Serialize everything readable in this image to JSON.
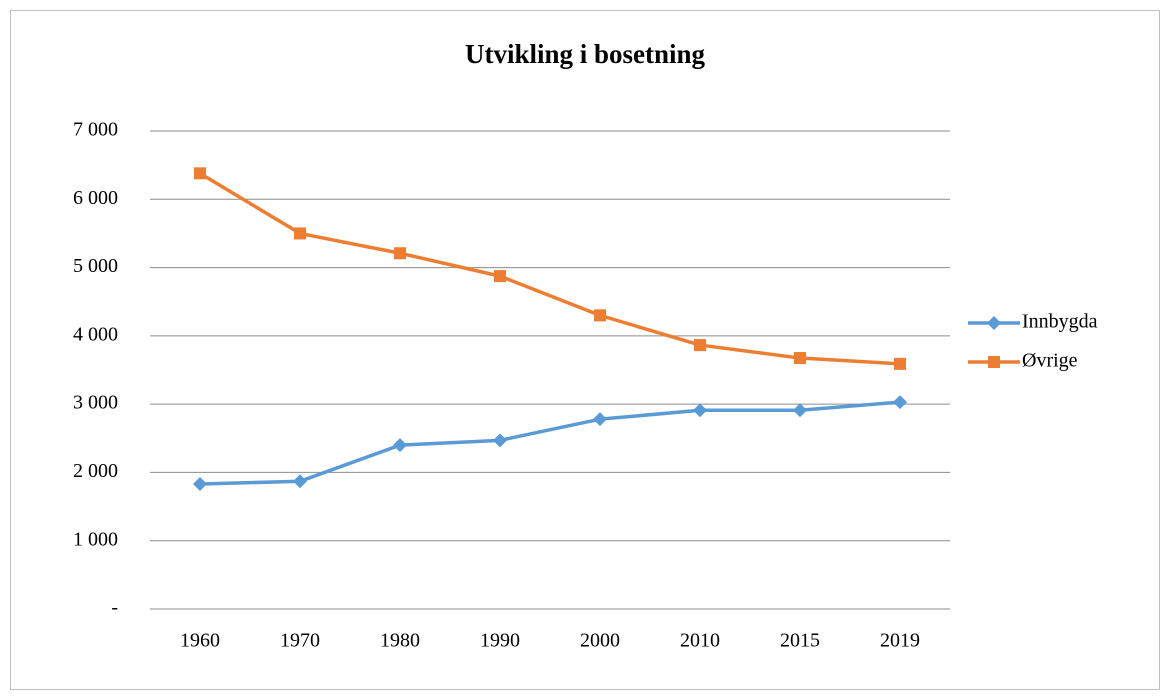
{
  "chart_data": {
    "type": "line",
    "title": "Utvikling i bosetning",
    "categories": [
      "1960",
      "1970",
      "1980",
      "1990",
      "2000",
      "2010",
      "2015",
      "2019"
    ],
    "series": [
      {
        "name": "Innbygda",
        "color": "#5b9bd5",
        "marker": "diamond",
        "values": [
          1830,
          1870,
          2400,
          2470,
          2780,
          2910,
          2910,
          3030
        ]
      },
      {
        "name": "Øvrige",
        "color": "#ed7d31",
        "marker": "square",
        "values": [
          6380,
          5500,
          5210,
          4875,
          4300,
          3865,
          3675,
          3590
        ]
      }
    ],
    "ylim": [
      0,
      7000
    ],
    "yticks": [
      {
        "value": 0,
        "label": "-"
      },
      {
        "value": 1000,
        "label": "1 000"
      },
      {
        "value": 2000,
        "label": "2 000"
      },
      {
        "value": 3000,
        "label": "3 000"
      },
      {
        "value": 4000,
        "label": "4 000"
      },
      {
        "value": 5000,
        "label": "5 000"
      },
      {
        "value": 6000,
        "label": "6 000"
      },
      {
        "value": 7000,
        "label": "7 000"
      }
    ],
    "grid": true,
    "legend": "right"
  }
}
